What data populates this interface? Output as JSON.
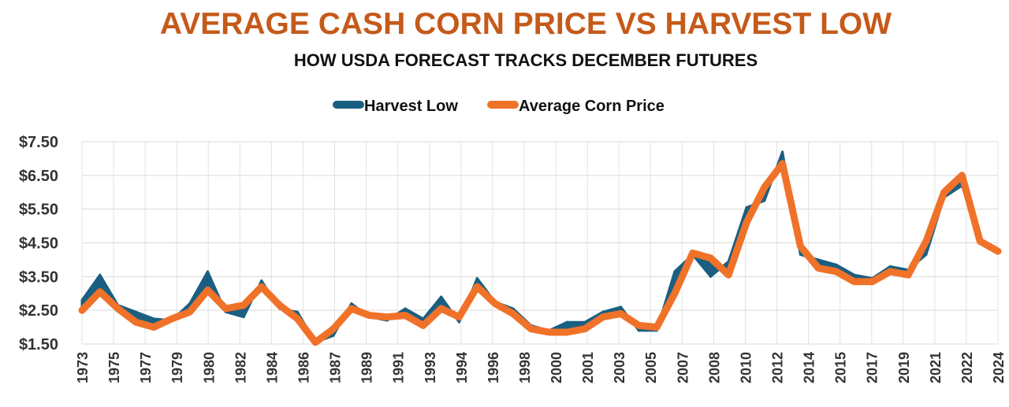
{
  "chart_data": {
    "type": "line",
    "title": "AVERAGE CASH CORN PRICE VS HARVEST LOW",
    "subtitle": "HOW USDA FORECAST TRACKS DECEMBER FUTURES",
    "xlabel": "",
    "ylabel": "",
    "ylim": [
      1.5,
      7.5
    ],
    "yticks": [
      "$1.50",
      "$2.50",
      "$3.50",
      "$4.50",
      "$5.50",
      "$6.50",
      "$7.50"
    ],
    "ytick_values": [
      1.5,
      2.5,
      3.5,
      4.5,
      5.5,
      6.5,
      7.5
    ],
    "grid": true,
    "legend_position": "top-center",
    "x_tick_labels": [
      "1973",
      "1975",
      "1977",
      "1979",
      "1980",
      "1982",
      "1984",
      "1986",
      "1987",
      "1989",
      "1991",
      "1993",
      "1994",
      "1996",
      "1998",
      "2000",
      "2001",
      "2003",
      "2005",
      "2007",
      "2008",
      "2010",
      "2012",
      "2014",
      "2015",
      "2017",
      "2019",
      "2021",
      "2022",
      "2024"
    ],
    "series": [
      {
        "name": "Harvest Low",
        "color": "#1a5f82",
        "style": "area-band",
        "values": [
          2.8,
          3.55,
          2.65,
          2.45,
          2.25,
          2.2,
          2.7,
          3.65,
          2.45,
          2.3,
          3.38,
          2.55,
          2.45,
          1.55,
          1.75,
          2.7,
          2.3,
          2.2,
          2.55,
          2.25,
          2.9,
          2.15,
          3.45,
          2.75,
          2.55,
          2.05,
          1.9,
          2.15,
          2.15,
          2.45,
          2.6,
          1.9,
          1.9,
          3.65,
          4.15,
          3.5,
          3.95,
          5.55,
          5.75,
          7.2,
          4.15,
          4.0,
          3.85,
          3.55,
          3.45,
          3.8,
          3.7,
          4.15,
          5.85,
          6.2,
          4.5,
          4.25
        ]
      },
      {
        "name": "Average Corn Price",
        "color": "#f07229",
        "style": "line",
        "values": [
          2.5,
          3.05,
          2.55,
          2.15,
          2.0,
          2.25,
          2.45,
          3.1,
          2.55,
          2.65,
          3.2,
          2.65,
          2.25,
          1.55,
          1.95,
          2.55,
          2.35,
          2.3,
          2.35,
          2.05,
          2.55,
          2.3,
          3.2,
          2.7,
          2.4,
          1.95,
          1.85,
          1.85,
          1.95,
          2.3,
          2.4,
          2.05,
          2.0,
          3.0,
          4.2,
          4.05,
          3.55,
          5.1,
          6.15,
          6.85,
          4.4,
          3.75,
          3.65,
          3.35,
          3.35,
          3.65,
          3.55,
          4.55,
          6.0,
          6.5,
          4.55,
          4.25
        ]
      }
    ]
  }
}
